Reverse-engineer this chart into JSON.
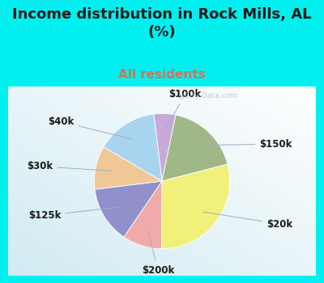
{
  "title": "Income distribution in Rock Mills, AL\n(%)",
  "subtitle": "All residents",
  "title_color": "#1a1a1a",
  "subtitle_color": "#cc7755",
  "bg_cyan": "#00f0f0",
  "watermark": "@City-Data.com",
  "slices": [
    {
      "label": "$100k",
      "value": 5,
      "color": "#c8aad8"
    },
    {
      "label": "$150k",
      "value": 17,
      "color": "#a0b888"
    },
    {
      "label": "$20k",
      "value": 28,
      "color": "#f0f07a"
    },
    {
      "label": "$200k",
      "value": 9,
      "color": "#f0aaaa"
    },
    {
      "label": "$125k",
      "value": 13,
      "color": "#9090cc"
    },
    {
      "label": "$30k",
      "value": 10,
      "color": "#f0c898"
    },
    {
      "label": "$40k",
      "value": 14,
      "color": "#a8d4f0"
    }
  ],
  "label_fontsize": 8.5,
  "title_fontsize": 13,
  "subtitle_fontsize": 11
}
